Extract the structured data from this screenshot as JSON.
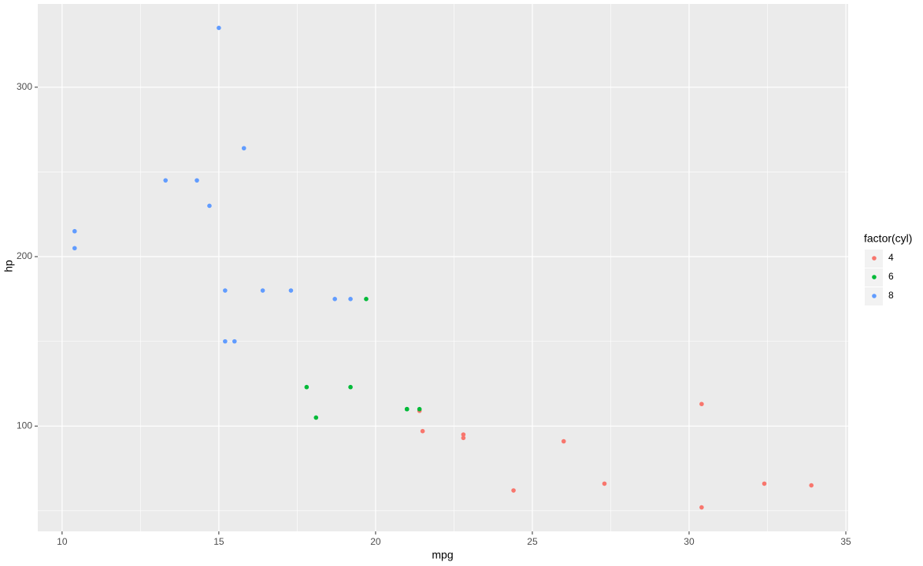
{
  "chart_data": {
    "type": "scatter",
    "x_label": "mpg",
    "y_label": "hp",
    "legend_title": "factor(cyl)",
    "xlim": [
      9.225,
      35.075
    ],
    "ylim": [
      37.85,
      349.15
    ],
    "xticks": [
      10,
      15,
      20,
      25,
      30,
      35
    ],
    "yticks": [
      100,
      200,
      300
    ],
    "x_minor_ticks": [
      12.5,
      17.5,
      22.5,
      27.5,
      32.5
    ],
    "y_minor_ticks": [
      50,
      150,
      250
    ],
    "grid": true,
    "legend_position": "right",
    "series": [
      {
        "name": "4",
        "color": "#F8766D",
        "x": [
          22.8,
          24.4,
          22.8,
          32.4,
          30.4,
          33.9,
          21.5,
          27.3,
          26.0,
          30.4,
          21.4
        ],
        "values": [
          93,
          62,
          95,
          66,
          52,
          65,
          97,
          66,
          91,
          113,
          109
        ]
      },
      {
        "name": "6",
        "color": "#00BA38",
        "x": [
          21.0,
          21.0,
          21.4,
          18.1,
          19.2,
          17.8,
          19.7
        ],
        "values": [
          110,
          110,
          110,
          105,
          123,
          123,
          175
        ]
      },
      {
        "name": "8",
        "color": "#619CFF",
        "x": [
          18.7,
          14.3,
          16.4,
          17.3,
          15.2,
          10.4,
          10.4,
          14.7,
          15.5,
          15.2,
          13.3,
          19.2,
          15.8,
          15.0
        ],
        "values": [
          175,
          245,
          180,
          180,
          180,
          205,
          215,
          230,
          150,
          150,
          245,
          175,
          264,
          335
        ]
      }
    ]
  }
}
